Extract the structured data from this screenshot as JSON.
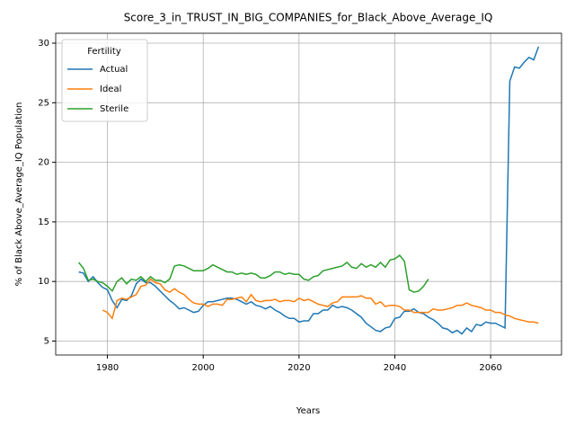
{
  "chart_data": {
    "type": "line",
    "title": "Score_3_in_TRUST_IN_BIG_COMPANIES_for_Black_Above_Average_IQ",
    "x_label": "Years",
    "y_label": "% of Black Above_Average_IQ Population",
    "legend_title": "Fertility",
    "legend_loc": "upper left",
    "grid": true,
    "xlim": [
      1969.2,
      2074.8
    ],
    "ylim": [
      3.83,
      30.83
    ],
    "xticks": [
      1980,
      2000,
      2020,
      2040,
      2060
    ],
    "yticks": [
      5,
      10,
      15,
      20,
      25,
      30
    ],
    "x": [
      1974,
      1975,
      1976,
      1977,
      1978,
      1979,
      1980,
      1981,
      1982,
      1983,
      1984,
      1985,
      1986,
      1987,
      1988,
      1989,
      1990,
      1991,
      1992,
      1993,
      1994,
      1995,
      1996,
      1997,
      1998,
      1999,
      2000,
      2001,
      2002,
      2003,
      2004,
      2005,
      2006,
      2007,
      2008,
      2009,
      2010,
      2011,
      2012,
      2013,
      2014,
      2015,
      2016,
      2017,
      2018,
      2019,
      2020,
      2021,
      2022,
      2023,
      2024,
      2025,
      2026,
      2027,
      2028,
      2029,
      2030,
      2031,
      2032,
      2033,
      2034,
      2035,
      2036,
      2037,
      2038,
      2039,
      2040,
      2041,
      2042,
      2043,
      2044,
      2045,
      2046,
      2047,
      2048,
      2049,
      2050,
      2051,
      2052,
      2053,
      2054,
      2055,
      2056,
      2057,
      2058,
      2059,
      2060,
      2061,
      2062,
      2063,
      2064,
      2065,
      2066,
      2067,
      2068,
      2069,
      2070
    ],
    "series": [
      {
        "name": "Actual",
        "color": "#1f77b4",
        "values": [
          10.8,
          10.7,
          10.0,
          10.4,
          9.9,
          9.5,
          9.3,
          8.4,
          7.8,
          8.5,
          8.4,
          8.8,
          9.8,
          10.2,
          9.9,
          9.9,
          9.6,
          9.2,
          8.8,
          8.4,
          8.1,
          7.7,
          7.8,
          7.6,
          7.4,
          7.5,
          8.0,
          8.3,
          8.3,
          8.4,
          8.5,
          8.6,
          8.6,
          8.5,
          8.3,
          8.1,
          8.3,
          8.0,
          7.9,
          7.7,
          7.9,
          7.6,
          7.4,
          7.1,
          6.9,
          6.9,
          6.6,
          6.7,
          6.7,
          7.3,
          7.3,
          7.6,
          7.6,
          8.0,
          7.8,
          7.9,
          7.8,
          7.6,
          7.3,
          7.0,
          6.5,
          6.2,
          5.9,
          5.8,
          6.1,
          6.2,
          6.9,
          7.0,
          7.5,
          7.5,
          7.7,
          7.4,
          7.3,
          7.0,
          6.8,
          6.5,
          6.1,
          6.0,
          5.7,
          5.9,
          5.6,
          6.1,
          5.8,
          6.4,
          6.3,
          6.6,
          6.5,
          6.5,
          6.3,
          6.1,
          26.8,
          28.0,
          27.9,
          28.4,
          28.8,
          28.6,
          29.7
        ]
      },
      {
        "name": "Ideal",
        "color": "#ff7f0e",
        "values": [
          null,
          null,
          null,
          null,
          null,
          7.6,
          7.4,
          6.9,
          8.4,
          8.6,
          8.5,
          8.7,
          8.9,
          9.6,
          9.7,
          10.2,
          9.9,
          9.8,
          9.3,
          9.1,
          9.4,
          9.1,
          8.9,
          8.5,
          8.2,
          8.1,
          8.1,
          7.9,
          8.1,
          8.1,
          8.0,
          8.5,
          8.5,
          8.6,
          8.7,
          8.3,
          8.9,
          8.4,
          8.3,
          8.4,
          8.4,
          8.5,
          8.3,
          8.4,
          8.4,
          8.3,
          8.6,
          8.4,
          8.5,
          8.3,
          8.1,
          8.0,
          7.9,
          8.2,
          8.3,
          8.7,
          8.7,
          8.7,
          8.7,
          8.8,
          8.6,
          8.6,
          8.1,
          8.3,
          7.9,
          8.0,
          8.0,
          7.9,
          7.6,
          7.6,
          7.4,
          7.4,
          7.4,
          7.4,
          7.7,
          7.6,
          7.6,
          7.7,
          7.8,
          8.0,
          8.0,
          8.2,
          8.0,
          7.9,
          7.8,
          7.6,
          7.6,
          7.4,
          7.4,
          7.2,
          7.1,
          6.9,
          6.8,
          6.7,
          6.6,
          6.6,
          6.5
        ]
      },
      {
        "name": "Sterile",
        "color": "#2ca02c",
        "values": [
          11.6,
          11.1,
          10.1,
          10.2,
          10.0,
          9.9,
          9.6,
          9.2,
          10.0,
          10.3,
          9.8,
          10.2,
          10.1,
          10.4,
          10.0,
          10.4,
          10.1,
          10.1,
          9.9,
          10.2,
          11.3,
          11.4,
          11.3,
          11.1,
          10.9,
          10.9,
          10.9,
          11.1,
          11.4,
          11.2,
          11.0,
          10.8,
          10.8,
          10.6,
          10.7,
          10.6,
          10.7,
          10.6,
          10.3,
          10.3,
          10.5,
          10.8,
          10.8,
          10.6,
          10.7,
          10.6,
          10.6,
          10.2,
          10.1,
          10.4,
          10.5,
          10.9,
          11.0,
          11.1,
          11.2,
          11.3,
          11.6,
          11.2,
          11.1,
          11.5,
          11.2,
          11.4,
          11.2,
          11.6,
          11.2,
          11.8,
          11.9,
          12.2,
          11.7,
          9.3,
          9.1,
          9.2,
          9.6,
          10.2,
          null,
          null,
          null,
          null,
          null,
          null,
          null,
          null,
          null,
          null,
          null,
          null,
          null,
          null,
          null,
          null,
          null,
          null,
          null,
          null,
          null,
          null,
          null
        ]
      }
    ]
  }
}
